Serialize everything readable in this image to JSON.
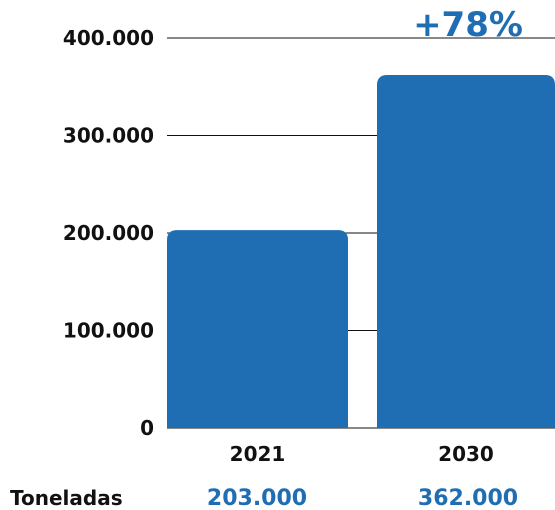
{
  "chart_data": {
    "type": "bar",
    "categories": [
      "2021",
      "2030"
    ],
    "values": [
      203000,
      362000
    ],
    "y_ticks": [
      "0",
      "100.000",
      "200.000",
      "300.000",
      "400.000"
    ],
    "ylim": [
      0,
      400000
    ],
    "grid": true,
    "annotation": "+78%",
    "row_label": "Toneladas",
    "row_values": [
      "203.000",
      "362.000"
    ]
  },
  "colors": {
    "bar": "#1f6db2",
    "accent": "#1f6db2",
    "text": "#111111",
    "grid": "#111111"
  }
}
